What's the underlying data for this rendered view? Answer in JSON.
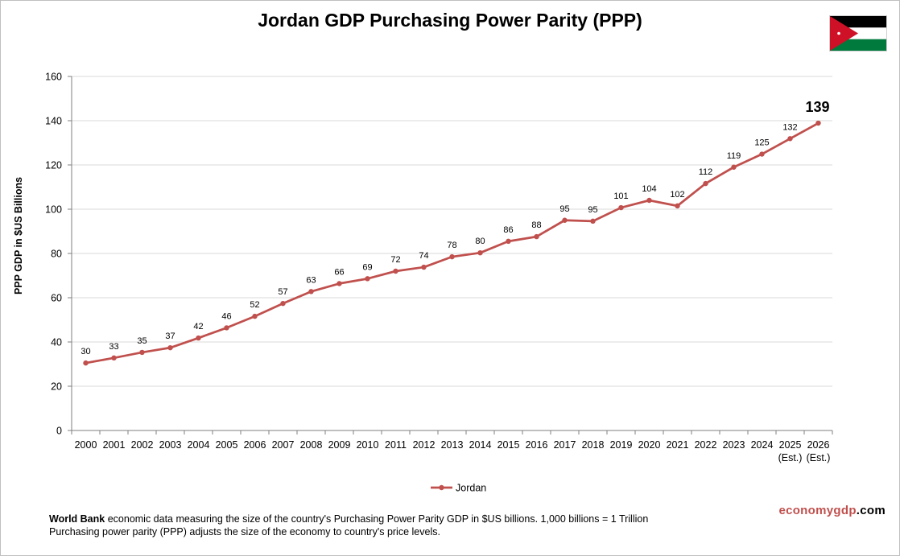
{
  "title": "Jordan GDP Purchasing Power Parity (PPP)",
  "flag_icon": "jordan-flag-icon",
  "colors": {
    "series": "#c0504d",
    "grid": "#d9d9d9",
    "axis": "#7f7f7f"
  },
  "chart_data": {
    "type": "line",
    "title": "Jordan GDP Purchasing Power Parity (PPP)",
    "xlabel": "",
    "ylabel": "PPP GDP in $US Billions",
    "ylim": [
      0,
      160
    ],
    "yticks": [
      0,
      20,
      40,
      60,
      80,
      100,
      120,
      140,
      160
    ],
    "grid": true,
    "legend_position": "bottom-center",
    "categories": [
      "2000",
      "2001",
      "2002",
      "2003",
      "2004",
      "2005",
      "2006",
      "2007",
      "2008",
      "2009",
      "2010",
      "2011",
      "2012",
      "2013",
      "2014",
      "2015",
      "2016",
      "2017",
      "2018",
      "2019",
      "2020",
      "2021",
      "2022",
      "2023",
      "2024",
      "2025",
      "2026"
    ],
    "category_sublabels": [
      "",
      "",
      "",
      "",
      "",
      "",
      "",
      "",
      "",
      "",
      "",
      "",
      "",
      "",
      "",
      "",
      "",
      "",
      "",
      "",
      "",
      "",
      "",
      "",
      "",
      "(Est.)",
      "(Est.)"
    ],
    "series": [
      {
        "name": "Jordan",
        "color": "#c0504d",
        "values": [
          30.5,
          32.8,
          35.3,
          37.4,
          41.8,
          46.4,
          51.6,
          57.4,
          62.8,
          66.4,
          68.6,
          72.0,
          73.8,
          78.5,
          80.3,
          85.5,
          87.6,
          95.0,
          94.6,
          100.7,
          104.0,
          101.5,
          111.6,
          119.0,
          124.9,
          131.9,
          138.9
        ],
        "labels": [
          "30",
          "33",
          "35",
          "37",
          "42",
          "46",
          "52",
          "57",
          "63",
          "66",
          "69",
          "72",
          "74",
          "78",
          "80",
          "86",
          "88",
          "95",
          "95",
          "101",
          "104",
          "102",
          "112",
          "119",
          "125",
          "132",
          "139"
        ]
      }
    ]
  },
  "footer": {
    "source_bold": "World Bank",
    "line1_rest": " economic data measuring the size of the country's Purchasing Power Parity GDP in $US billions. 1,000 billions = 1 Trillion",
    "line2": "Purchasing power parity (PPP) adjusts the size of the economy to country's price levels."
  },
  "brand": {
    "part1": "economy",
    "part2": "gdp",
    "part3": ".com"
  }
}
